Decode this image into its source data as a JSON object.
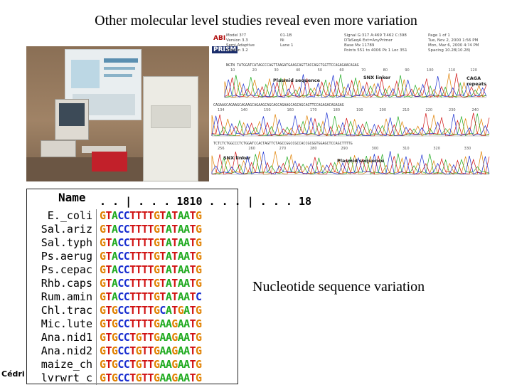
{
  "slide": {
    "title": "Other molecular level studies reveal even more variation",
    "caption": "Nucleotide sequence variation",
    "credit": "Cédri"
  },
  "chromatogram": {
    "logo_top": "ABI",
    "logo_bottom": "PRISM",
    "meta_left": [
      "Model 3?7",
      "Version 3.3",
      "Semi-Adaptive",
      "Version 3.2"
    ],
    "meta_mid": [
      "01-1B",
      "",
      "Ni",
      "Lane 1"
    ],
    "meta_right": [
      "Signal G:317 A:469 T:462 C:398",
      "DTaSeqA Ext=AnyPrimer",
      "Base Mx 11789",
      "Points 551 to 4006  Pk 1 Loc 351"
    ],
    "meta_far": [
      "Page 1 of 1",
      "Tue, Nov 2, 2000 1:56 PM",
      "Mon, Mar 6, 2000 4:?4 PM",
      "Spacing 10.28(10.28)"
    ],
    "labels": {
      "plasmid_1": "Plasmid sequence",
      "snx_1": "SNX linker",
      "caga": "CAGA repeats",
      "snx_2": "SNX linker",
      "plasmid_2": "Plasmid sequence"
    },
    "seq_rows": [
      "NGTN TATGGATCATAGCCCAGTTAAGATGAAGCAGTTACCAGCTGGTTCCAGAGAACAGAG",
      "CAGAAGCAGAAGCAGAAGCAGAAGCAGCAGCAGAAGCAGCAGCAGTTCCAGAGACAGAGAG",
      "TCTCTCTGGCCCTCTGGATCCACTAGTTCTAGCCGGCCGCCACCGCGGTGGAGCTCCAGCTTTTG"
    ],
    "tick_rows": [
      [
        "10",
        "20",
        "30",
        "40",
        "50",
        "60",
        "70",
        "80",
        "90",
        "100",
        "110",
        "120"
      ],
      [
        "134",
        "140",
        "150",
        "160",
        "170",
        "180",
        "190",
        "200",
        "210",
        "220",
        "230",
        "240"
      ],
      [
        "256",
        "260",
        "270",
        "280",
        "290",
        "300",
        "310",
        "320",
        "330"
      ]
    ]
  },
  "alignment": {
    "header_name": "Name",
    "header_ruler": ". . | . . . 1810 . . . | . . . 18",
    "rows": [
      {
        "name": "E._coli",
        "seq": "GTACCTTTTGTATAATG"
      },
      {
        "name": "Sal.ariz",
        "seq": "GTACCTTTTGTATAATG"
      },
      {
        "name": "Sal.typh",
        "seq": "GTACCTTTTGTATAATG"
      },
      {
        "name": "Ps.aerug",
        "seq": "GTACCTTTTGTATAATG"
      },
      {
        "name": "Ps.cepac",
        "seq": "GTACCTTTTGTATAATG"
      },
      {
        "name": "Rhb.caps",
        "seq": "GTACCTTTTGTATAATG"
      },
      {
        "name": "Rum.amin",
        "seq": "GTACCTTTTGTATAATC"
      },
      {
        "name": "Chl.trac",
        "seq": "GTGCCTTTTGCATGATG"
      },
      {
        "name": "Mic.lute",
        "seq": "GTGCCTTTTGAAGAATG"
      },
      {
        "name": "Ana.nid1",
        "seq": "GTGCCTGTTGAAGAATG"
      },
      {
        "name": "Ana.nid2",
        "seq": "GTGCCTGTTGAAGAATG"
      },
      {
        "name": "maize_ch",
        "seq": "GTGCCTGTTGAAGAATG"
      },
      {
        "name": "lvrwrt_c",
        "seq": "GTGCCTGTTGAAGAATG"
      }
    ]
  },
  "colors": {
    "G": "#e08000",
    "A": "#1faa1f",
    "T": "#d01010",
    "C": "#1a2fd0"
  }
}
